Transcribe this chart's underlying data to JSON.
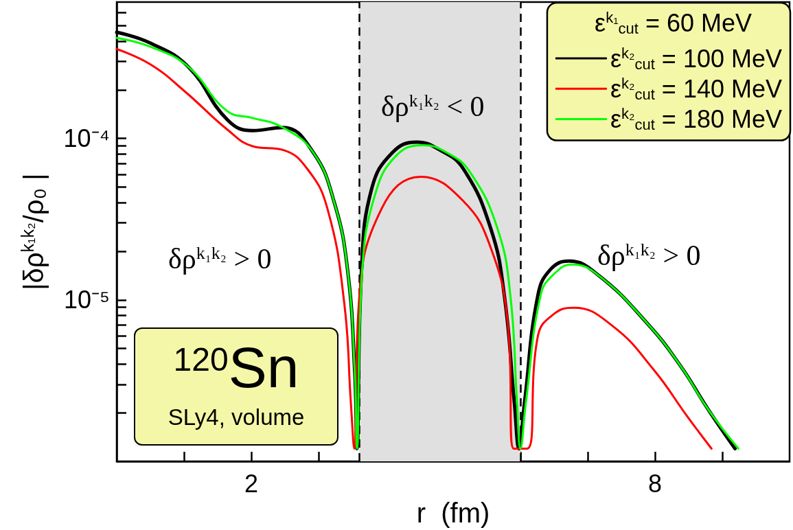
{
  "chart_data": {
    "type": "line",
    "xlabel": "r  (fm)",
    "ylabel": "|δρ$^{k₁k₂}$/ρ₀ |",
    "legend_title": "ε$^{k₁}$$_{cut}$ = 60 MeV",
    "legend": "top right",
    "log": "y",
    "grid": false,
    "xlim": [
      0,
      10
    ],
    "xticks": [
      {
        "value": 1,
        "label": null
      },
      2,
      {
        "value": 3,
        "label": null
      },
      {
        "value": 4,
        "label": null
      },
      {
        "value": 5,
        "label": null
      },
      {
        "value": 6,
        "label": null
      },
      {
        "value": 7,
        "label": null
      },
      8,
      {
        "value": 9,
        "label": null
      }
    ],
    "ylim": [
      1e-06,
      0.0007
    ],
    "yticks": [
      {
        "value": 2e-06,
        "label": null
      },
      {
        "value": 3e-06,
        "label": null
      },
      {
        "value": 4e-06,
        "label": null
      },
      {
        "value": 5e-06,
        "label": null
      },
      {
        "value": 6e-06,
        "label": null
      },
      {
        "value": 7e-06,
        "label": null
      },
      {
        "value": 8e-06,
        "label": null
      },
      {
        "value": 9e-06,
        "label": null
      },
      {
        "value": 1e-05,
        "label": "10⁻⁵"
      },
      {
        "value": 2e-05,
        "label": null
      },
      {
        "value": 3e-05,
        "label": null
      },
      {
        "value": 4e-05,
        "label": null
      },
      {
        "value": 5e-05,
        "label": null
      },
      {
        "value": 6e-05,
        "label": null
      },
      {
        "value": 7e-05,
        "label": null
      },
      {
        "value": 8e-05,
        "label": null
      },
      {
        "value": 9e-05,
        "label": null
      },
      {
        "value": 0.0001,
        "label": "10⁻⁴"
      },
      {
        "value": 0.0002,
        "label": null
      },
      {
        "value": 0.0003,
        "label": null
      },
      {
        "value": 0.0004,
        "label": null
      },
      {
        "value": 0.0005,
        "label": null
      },
      {
        "value": 0.0006,
        "label": null
      }
    ],
    "bands": [
      {
        "axis": "x",
        "from": 3.6,
        "to": 6.0,
        "color": "#e0e0e0"
      }
    ],
    "ref_lines": [
      {
        "axis": "x",
        "value": 3.6,
        "line_style": "dashed",
        "color": "#000000"
      },
      {
        "axis": "x",
        "value": 6.0,
        "line_style": "dashed",
        "color": "#000000"
      }
    ],
    "annotations": [
      "δρ$^{k₁k₂}$ > 0",
      "δρ$^{k₁k₂}$ < 0",
      "δρ$^{k₁k₂}$ > 0",
      "$^{120}$Sn",
      "SLy4, volume"
    ],
    "series": [
      {
        "name": "ε$^{k₂}$$_{cut}$ = 100 MeV",
        "color": "#000000",
        "x": [
          0,
          0.5,
          1.06,
          1.65,
          2.02,
          2.47,
          2.92,
          3.23,
          3.43,
          3.54,
          3.57,
          3.64,
          3.79,
          4.1,
          4.46,
          4.8,
          5.15,
          5.56,
          5.76,
          5.91,
          5.98,
          6.06,
          6.26,
          6.45,
          6.72,
          7.17,
          7.88,
          8.38,
          8.79,
          9.19
        ],
        "values": [
          0.000455,
          0.00039,
          0.000279,
          0.00013,
          0.000112,
          0.000117,
          8.2e-05,
          4.06e-05,
          1.55e-05,
          3.4e-06,
          1.2e-06,
          1.55e-05,
          4.9e-05,
          8.2e-05,
          9.5e-05,
          8.5e-05,
          6.5e-05,
          2.76e-05,
          1.07e-05,
          2.3e-06,
          1.2e-06,
          2.3e-06,
          1.07e-05,
          1.55e-05,
          1.74e-05,
          1.41e-05,
          7.2e-06,
          3.9e-06,
          2.1e-06,
          1.2e-06
        ]
      },
      {
        "name": "ε$^{k₂}$$_{cut}$ = 140 MeV",
        "color": "#ff0000",
        "x": [
          0,
          0.5,
          1.01,
          1.65,
          2.02,
          2.47,
          2.83,
          3.13,
          3.38,
          3.48,
          3.53,
          3.6,
          3.94,
          4.52,
          5.15,
          5.56,
          5.81,
          5.9,
          6.1,
          6.26,
          6.5,
          6.79,
          7.37,
          7.98,
          8.48,
          8.84
        ],
        "values": [
          0.000358,
          0.000288,
          0.000196,
          0.000113,
          8.96e-05,
          8.5e-05,
          6.5e-05,
          3.7e-05,
          9.7e-06,
          2.3e-06,
          1.2e-06,
          9.7e-06,
          3.7e-05,
          5.8e-05,
          4.1e-05,
          2.1e-05,
          7.3e-06,
          1.2e-06,
          1.2e-06,
          6e-06,
          8.2e-06,
          8.95e-06,
          6.9e-06,
          3.7e-06,
          1.9e-06,
          1.2e-06
        ]
      },
      {
        "name": "ε$^{k₂}$$_{cut}$ = 180 MeV",
        "color": "#00ff00",
        "x": [
          0,
          0.5,
          1.06,
          1.65,
          2.02,
          2.47,
          2.92,
          3.23,
          3.43,
          3.54,
          3.57,
          3.65,
          3.84,
          4.15,
          4.55,
          4.9,
          5.25,
          5.66,
          5.85,
          5.95,
          6.0,
          6.08,
          6.3,
          6.5,
          6.77,
          7.17,
          7.88,
          8.38,
          8.79,
          9.24
        ],
        "values": [
          0.00042,
          0.00037,
          0.000279,
          0.000147,
          0.000134,
          0.000117,
          8.2e-05,
          4.06e-05,
          1.55e-05,
          3.4e-06,
          1.2e-06,
          1.55e-05,
          4.5e-05,
          7.8e-05,
          9.1e-05,
          8.2e-05,
          6.2e-05,
          2.76e-05,
          1.07e-05,
          2.3e-06,
          1.2e-06,
          2.3e-06,
          1.07e-05,
          1.45e-05,
          1.66e-05,
          1.41e-05,
          7.2e-06,
          3.9e-06,
          2.1e-06,
          1.2e-06
        ]
      }
    ]
  }
}
